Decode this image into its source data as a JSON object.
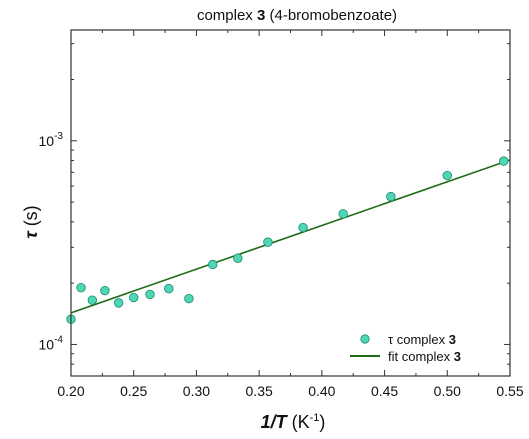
{
  "chart_data": {
    "type": "scatter",
    "title": {
      "pre": "complex ",
      "bold": "3",
      "post": " (4-bromobenzoate)"
    },
    "xlabel": {
      "bold_italic": "1/T",
      "units_pre": " (K",
      "units_sup": "-1",
      "units_post": ")"
    },
    "ylabel": {
      "symbol": "τ",
      "units": " (s)"
    },
    "xlim": [
      0.2,
      0.55
    ],
    "ylim": [
      7e-05,
      0.0035
    ],
    "y_scale": "log",
    "x_ticks": [
      "0.20",
      "0.25",
      "0.30",
      "0.35",
      "0.40",
      "0.45",
      "0.50",
      "0.55"
    ],
    "y_ticks": [
      {
        "value": 0.0001,
        "base": "10",
        "exp": "-4"
      },
      {
        "value": 0.001,
        "base": "10",
        "exp": "-3"
      }
    ],
    "grid": false,
    "legend_position": "bottom-right",
    "colors": {
      "points": "#4fd6b4",
      "point_edge": "#1f8a72",
      "fit": "#1e6b16",
      "frame": "#333333"
    },
    "series": [
      {
        "name": {
          "pre": "τ complex ",
          "bold": "3"
        },
        "type": "scatter",
        "x": [
          0.2,
          0.208,
          0.217,
          0.227,
          0.238,
          0.25,
          0.263,
          0.278,
          0.294,
          0.313,
          0.333,
          0.357,
          0.385,
          0.417,
          0.455,
          0.5,
          0.545
        ],
        "y": [
          0.000133,
          0.00019,
          0.000165,
          0.000184,
          0.00016,
          0.00017,
          0.000176,
          0.000188,
          0.000168,
          0.000247,
          0.000265,
          0.000318,
          0.000375,
          0.000438,
          0.000532,
          0.000675,
          0.000795
        ]
      },
      {
        "name": {
          "pre": "fit complex ",
          "bold": "3"
        },
        "type": "line",
        "x": [
          0.2,
          0.55
        ],
        "y": [
          0.000143,
          0.000805
        ]
      }
    ]
  }
}
